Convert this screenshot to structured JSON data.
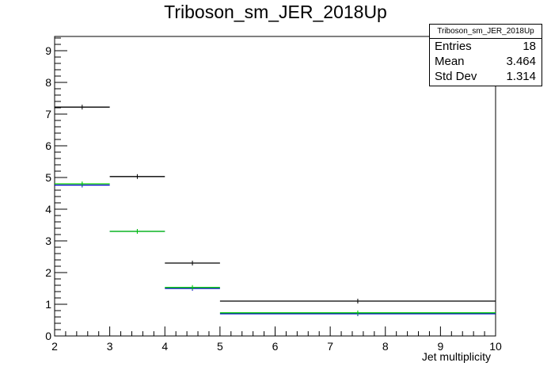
{
  "chart_data": {
    "type": "histogram",
    "title": "Triboson_sm_JER_2018Up",
    "xlabel": "Jet multiplicity",
    "ylabel": "",
    "xlim": [
      2,
      10
    ],
    "ylim": [
      0,
      9.45
    ],
    "x_ticks": [
      2,
      3,
      4,
      5,
      6,
      7,
      8,
      9,
      10
    ],
    "y_ticks": [
      0,
      1,
      2,
      3,
      4,
      5,
      6,
      7,
      8,
      9
    ],
    "bins": [
      [
        2,
        3
      ],
      [
        3,
        4
      ],
      [
        4,
        5
      ],
      [
        5,
        10
      ]
    ],
    "series": [
      {
        "color": "#000000",
        "values": [
          7.22,
          5.03,
          2.3,
          1.1
        ]
      },
      {
        "color": "#00cc00",
        "values": [
          4.8,
          3.3,
          1.53,
          0.73
        ]
      },
      {
        "color": "#0000cc",
        "values": [
          4.76,
          3.3,
          1.5,
          0.7
        ]
      }
    ],
    "stats_box": {
      "name": "Triboson_sm_JER_2018Up",
      "rows": [
        {
          "label": "Entries",
          "value": "18"
        },
        {
          "label": "Mean",
          "value": "3.464"
        },
        {
          "label": "Std Dev",
          "value": "1.314"
        }
      ]
    }
  }
}
